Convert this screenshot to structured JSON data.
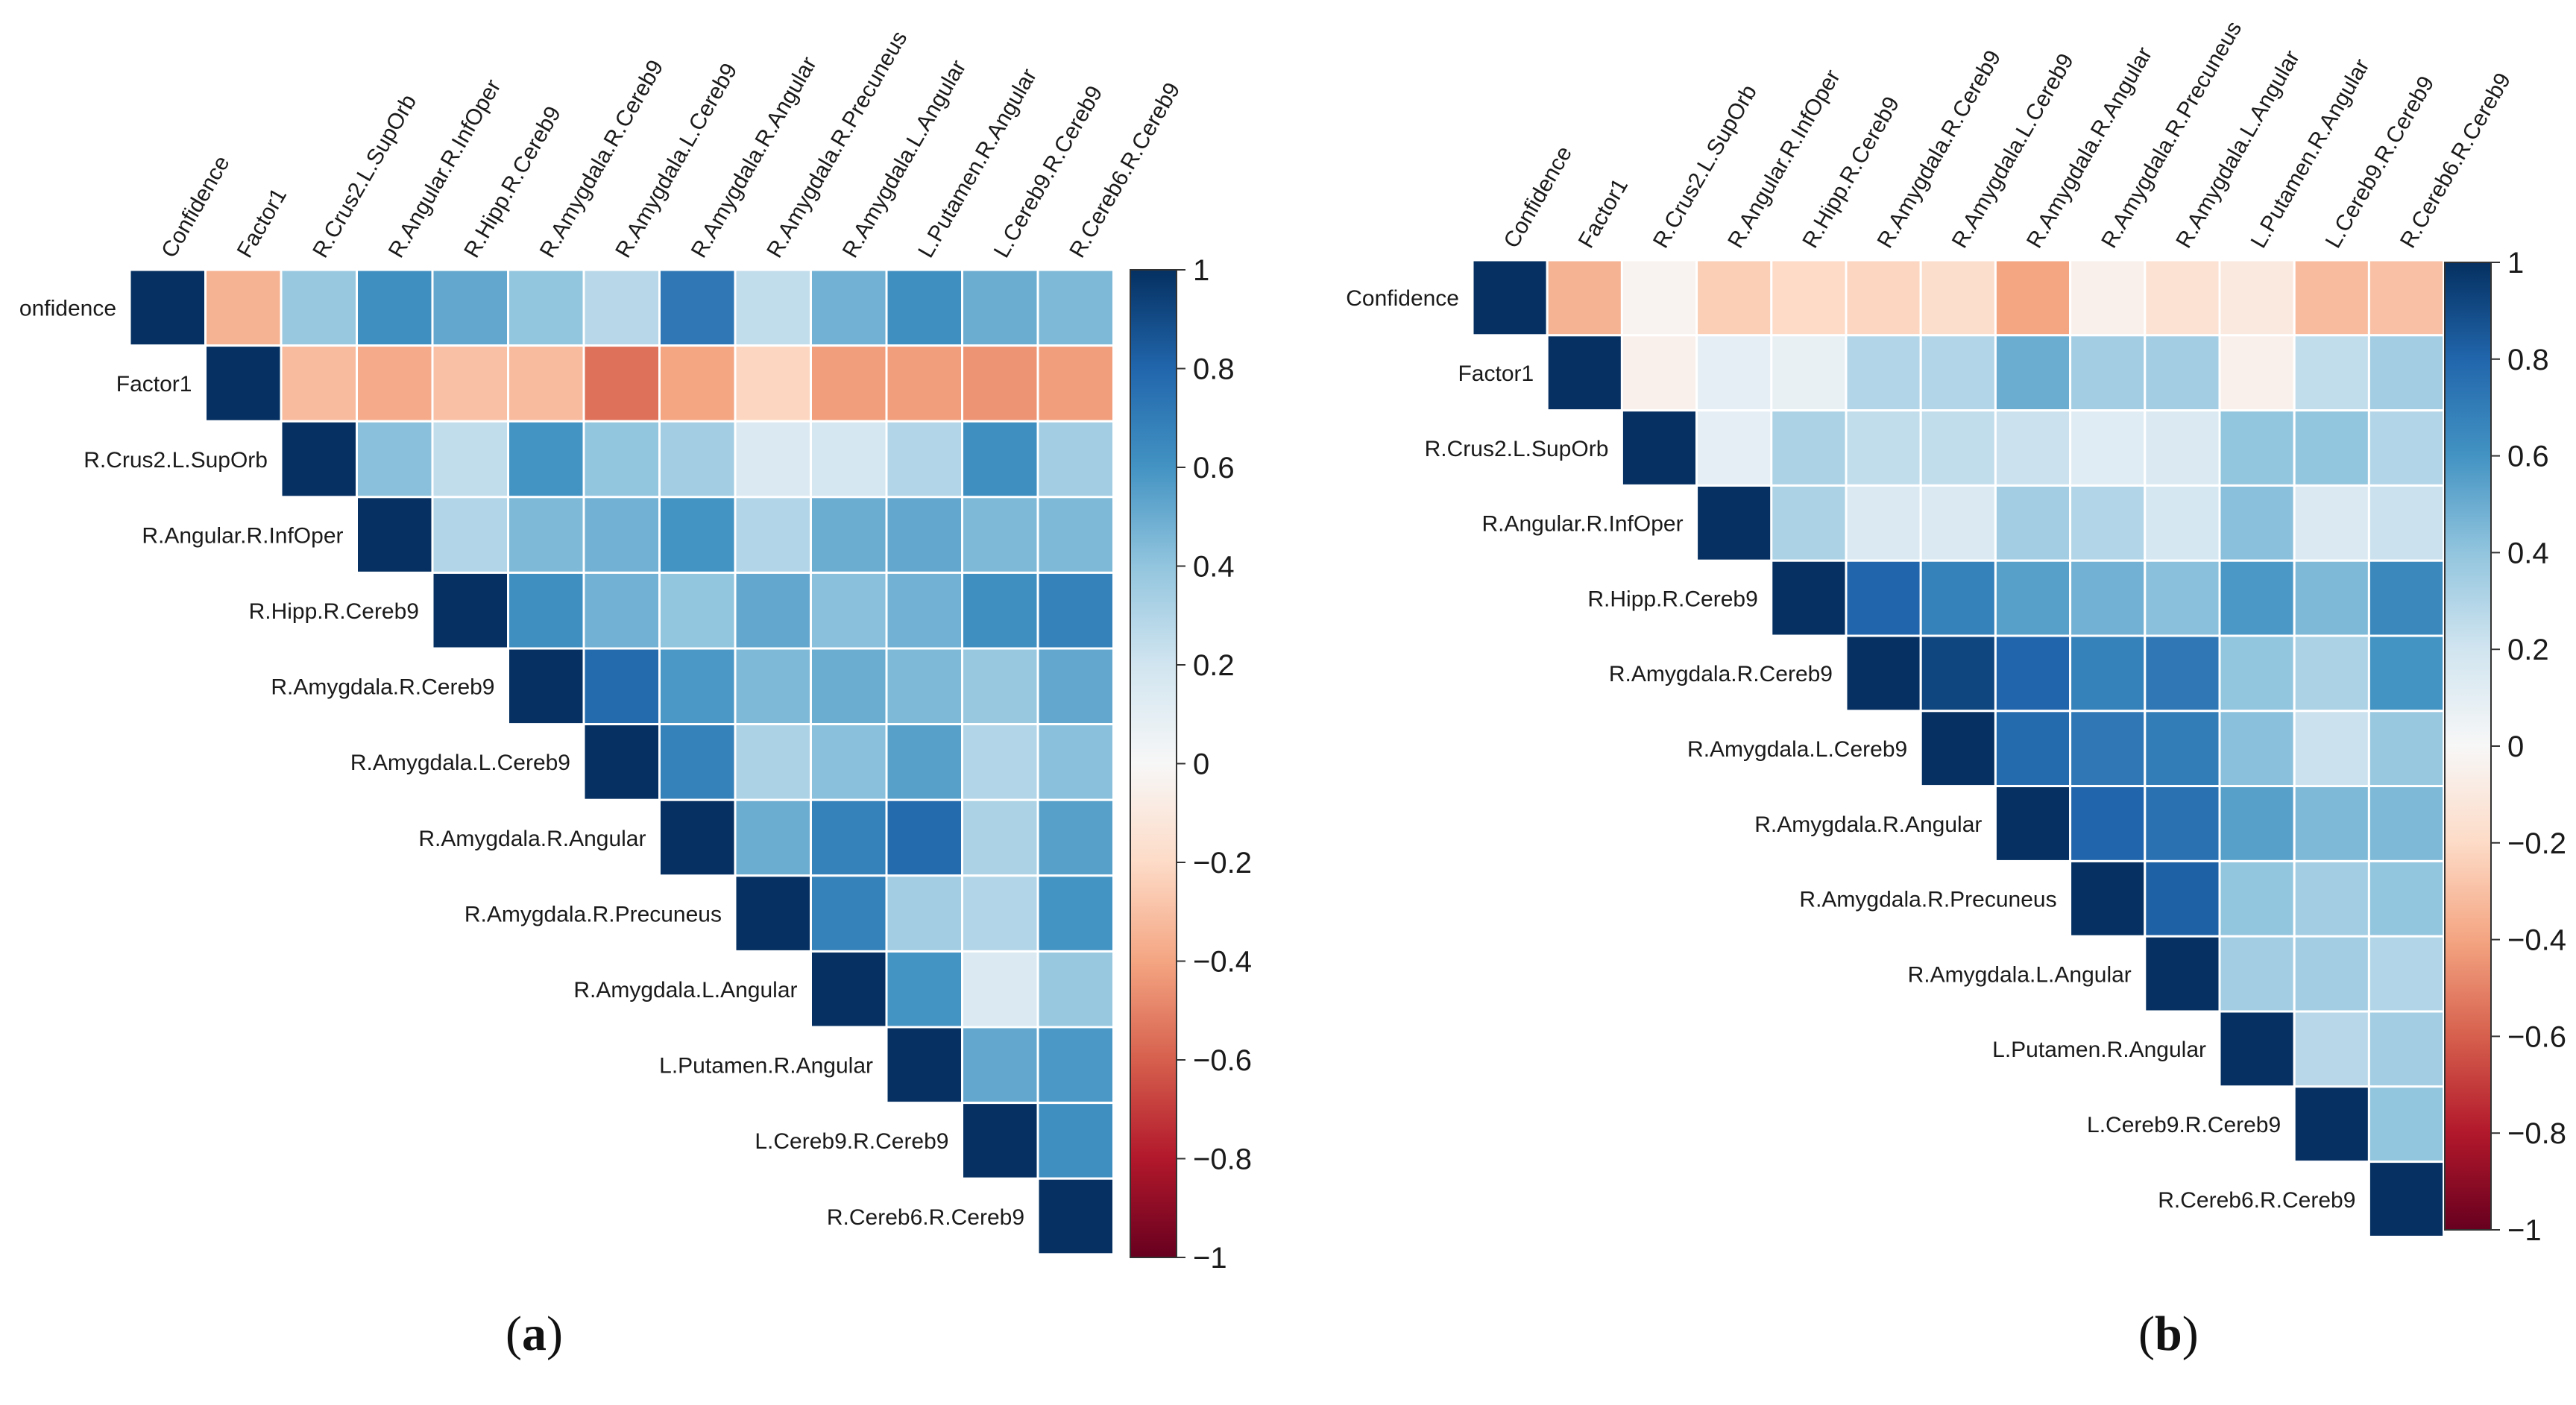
{
  "chart_data": [
    {
      "type": "heatmap",
      "panel": "a",
      "caption_letter": "a",
      "row_labels": [
        "Confidence",
        "Factor1",
        "R.Crus2.L.SupOrb",
        "R.Angular.R.InfOper",
        "R.Hipp.R.Cereb9",
        "R.Amygdala.R.Cereb9",
        "R.Amygdala.L.Cereb9",
        "R.Amygdala.R.Angular",
        "R.Amygdala.R.Precuneus",
        "R.Amygdala.L.Angular",
        "L.Putamen.R.Angular",
        "L.Cereb9.R.Cereb9",
        "R.Cereb6.R.Cereb9"
      ],
      "row_labels_display": [
        "onfidence",
        "Factor1",
        "R.Crus2.L.SupOrb",
        "R.Angular.R.InfOper",
        "R.Hipp.R.Cereb9",
        "R.Amygdala.R.Cereb9",
        "R.Amygdala.L.Cereb9",
        "R.Amygdala.R.Angular",
        "R.Amygdala.R.Precuneus",
        "R.Amygdala.L.Angular",
        "L.Putamen.R.Angular",
        "L.Cereb9.R.Cereb9",
        "R.Cereb6.R.Cereb9"
      ],
      "col_labels": [
        "Confidence",
        "Factor1",
        "R.Crus2.L.SupOrb",
        "R.Angular.R.InfOper",
        "R.Hipp.R.Cereb9",
        "R.Amygdala.R.Cereb9",
        "R.Amygdala.L.Cereb9",
        "R.Amygdala.R.Angular",
        "R.Amygdala.R.Precuneus",
        "R.Amygdala.L.Angular",
        "L.Putamen.R.Angular",
        "L.Cereb9.R.Cereb9",
        "R.Cereb6.R.Cereb9"
      ],
      "matrix_upper": [
        [
          1,
          -0.35,
          0.38,
          0.62,
          0.52,
          0.4,
          0.28,
          0.72,
          0.25,
          0.48,
          0.62,
          0.5,
          0.45
        ],
        [
          1,
          -0.32,
          -0.38,
          -0.3,
          -0.32,
          -0.55,
          -0.4,
          -0.22,
          -0.42,
          -0.42,
          -0.45,
          -0.42
        ],
        [
          1,
          0.42,
          0.25,
          0.6,
          0.4,
          0.35,
          0.15,
          0.18,
          0.3,
          0.62,
          0.35
        ],
        [
          1,
          0.3,
          0.45,
          0.48,
          0.6,
          0.3,
          0.5,
          0.52,
          0.45,
          0.45
        ],
        [
          1,
          0.62,
          0.48,
          0.4,
          0.52,
          0.42,
          0.48,
          0.62,
          0.68
        ],
        [
          1,
          0.78,
          0.58,
          0.45,
          0.5,
          0.45,
          0.38,
          0.52
        ],
        [
          1,
          0.68,
          0.32,
          0.42,
          0.55,
          0.3,
          0.42
        ],
        [
          1,
          0.5,
          0.68,
          0.78,
          0.32,
          0.55
        ],
        [
          1,
          0.68,
          0.35,
          0.3,
          0.6
        ],
        [
          1,
          0.6,
          0.15,
          0.38
        ],
        [
          1,
          0.52,
          0.58
        ],
        [
          1,
          0.62
        ],
        [
          1
        ]
      ],
      "colorbar": {
        "ticks": [
          "1",
          "0.8",
          "0.6",
          "0.4",
          "0.2",
          "0",
          "−0.2",
          "−0.4",
          "−0.6",
          "−0.8",
          "−1"
        ],
        "range": [
          -1,
          1
        ],
        "colormap": "RdBu"
      }
    },
    {
      "type": "heatmap",
      "panel": "b",
      "caption_letter": "b",
      "row_labels": [
        "Confidence",
        "Factor1",
        "R.Crus2.L.SupOrb",
        "R.Angular.R.InfOper",
        "R.Hipp.R.Cereb9",
        "R.Amygdala.R.Cereb9",
        "R.Amygdala.L.Cereb9",
        "R.Amygdala.R.Angular",
        "R.Amygdala.R.Precuneus",
        "R.Amygdala.L.Angular",
        "L.Putamen.R.Angular",
        "L.Cereb9.R.Cereb9",
        "R.Cereb6.R.Cereb9"
      ],
      "row_labels_display": [
        "Confidence",
        "Factor1",
        "R.Crus2.L.SupOrb",
        "R.Angular.R.InfOper",
        "R.Hipp.R.Cereb9",
        "R.Amygdala.R.Cereb9",
        "R.Amygdala.L.Cereb9",
        "R.Amygdala.R.Angular",
        "R.Amygdala.R.Precuneus",
        "R.Amygdala.L.Angular",
        "L.Putamen.R.Angular",
        "L.Cereb9.R.Cereb9",
        "R.Cereb6.R.Cereb9"
      ],
      "col_labels": [
        "Confidence",
        "Factor1",
        "R.Crus2.L.SupOrb",
        "R.Angular.R.InfOper",
        "R.Hipp.R.Cereb9",
        "R.Amygdala.R.Cereb9",
        "R.Amygdala.L.Cereb9",
        "R.Amygdala.R.Angular",
        "R.Amygdala.R.Precuneus",
        "R.Amygdala.L.Angular",
        "L.Putamen.R.Angular",
        "L.Cereb9.R.Cereb9",
        "R.Cereb6.R.Cereb9"
      ],
      "matrix_upper": [
        [
          1,
          -0.35,
          -0.03,
          -0.25,
          -0.2,
          -0.22,
          -0.18,
          -0.4,
          -0.05,
          -0.15,
          -0.1,
          -0.32,
          -0.3
        ],
        [
          1,
          -0.05,
          0.1,
          0.08,
          0.3,
          0.3,
          0.5,
          0.35,
          0.35,
          -0.05,
          0.25,
          0.35
        ],
        [
          1,
          0.1,
          0.32,
          0.25,
          0.25,
          0.22,
          0.12,
          0.15,
          0.4,
          0.4,
          0.3
        ],
        [
          1,
          0.32,
          0.15,
          0.15,
          0.35,
          0.3,
          0.18,
          0.42,
          0.15,
          0.22
        ],
        [
          1,
          0.8,
          0.68,
          0.55,
          0.48,
          0.42,
          0.58,
          0.45,
          0.65
        ],
        [
          1,
          0.92,
          0.8,
          0.68,
          0.72,
          0.4,
          0.32,
          0.6
        ],
        [
          1,
          0.78,
          0.72,
          0.7,
          0.42,
          0.22,
          0.38
        ],
        [
          1,
          0.8,
          0.75,
          0.55,
          0.45,
          0.45
        ],
        [
          1,
          0.82,
          0.4,
          0.35,
          0.4
        ],
        [
          1,
          0.35,
          0.35,
          0.3
        ],
        [
          1,
          0.28,
          0.35
        ],
        [
          1,
          0.4
        ],
        [
          1
        ]
      ],
      "colorbar": {
        "ticks": [
          "1",
          "0.8",
          "0.6",
          "0.4",
          "0.2",
          "0",
          "−0.2",
          "−0.4",
          "−0.6",
          "−0.8",
          "−1"
        ],
        "range": [
          -1,
          1
        ],
        "colormap": "RdBu"
      }
    }
  ]
}
